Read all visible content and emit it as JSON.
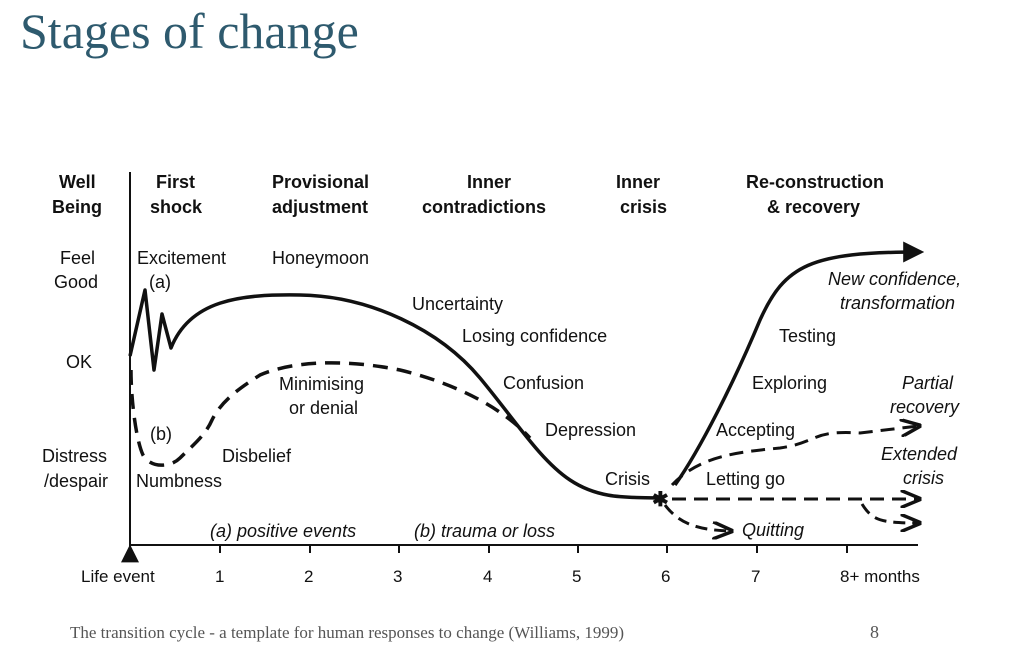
{
  "title": "Stages of change",
  "footer": "The transition cycle - a template for human responses to change (Williams, 1999)",
  "page_number": "8",
  "columns": {
    "well_being": [
      "Well",
      "Being"
    ],
    "first_shock": [
      "First",
      "shock"
    ],
    "provisional": [
      "Provisional",
      "adjustment"
    ],
    "inner_contradictions": [
      "Inner",
      "contradictions"
    ],
    "inner_crisis": [
      "Inner",
      "crisis"
    ],
    "reconstruction": [
      "Re-construction",
      "& recovery"
    ]
  },
  "levels": {
    "feel_good": [
      "Feel",
      "Good"
    ],
    "ok": "OK",
    "distress": [
      "Distress",
      "/despair"
    ]
  },
  "labels": {
    "excitement": "Excitement",
    "a": "(a)",
    "honeymoon": "Honeymoon",
    "uncertainty": "Uncertainty",
    "losing_confidence": "Losing confidence",
    "confusion": "Confusion",
    "depression": "Depression",
    "crisis": "Crisis",
    "minimising": [
      "Minimising",
      "or denial"
    ],
    "b": "(b)",
    "disbelief": "Disbelief",
    "numbness": "Numbness",
    "new_confidence": [
      "New confidence,",
      "transformation"
    ],
    "testing": "Testing",
    "exploring": "Exploring",
    "accepting": "Accepting",
    "letting_go": "Letting go",
    "quitting": "Quitting",
    "partial_recovery": [
      "Partial",
      "recovery"
    ],
    "extended_crisis": [
      "Extended",
      "crisis"
    ],
    "positive_events": "(a) positive events",
    "trauma": "(b) trauma or loss"
  },
  "axis": {
    "ticks": [
      "Life event",
      "1",
      "2",
      "3",
      "4",
      "5",
      "6",
      "7",
      "8+ months"
    ]
  }
}
